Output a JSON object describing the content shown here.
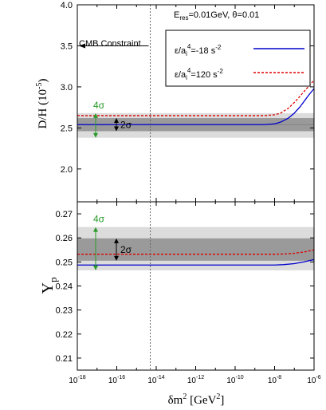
{
  "chart_data": [
    {
      "type": "line",
      "panel": "top",
      "xscale": "log",
      "xlim": [
        1e-18,
        1e-06
      ],
      "ylim": [
        1.6,
        4.0
      ],
      "ylabel_main": "D/H (10",
      "ylabel_exp": "-5",
      "ylabel_close": ")",
      "yticks": [
        {
          "v": 2.0,
          "label": "2.0"
        },
        {
          "v": 2.5,
          "label": "2.5"
        },
        {
          "v": 3.0,
          "label": "3.0"
        },
        {
          "v": 3.5,
          "label": "3.5"
        },
        {
          "v": 4.0,
          "label": "4.0"
        }
      ],
      "header": {
        "prefix": "E",
        "sub": "res",
        "suffix": "=0.01GeV, θ=0.01"
      },
      "cmb_label": "CMB Constraint",
      "cmb_arrow_y": 3.5,
      "vline_x": 5e-15,
      "bands": {
        "outer": [
          2.38,
          2.68
        ],
        "inner": [
          2.46,
          2.62
        ],
        "center": 2.54
      },
      "sigma4": {
        "label": "4σ",
        "range": [
          2.38,
          2.68
        ]
      },
      "sigma2": {
        "label": "2σ",
        "range": [
          2.46,
          2.62
        ]
      },
      "legend": [
        {
          "pre": "ε/a",
          "sub": "i",
          "sup": "4",
          "value": "=-18 s",
          "exp": "-2",
          "color": "#0000cc",
          "dash": "solid"
        },
        {
          "pre": "ε/a",
          "sub": "i",
          "sup": "4",
          "value": "=120 s",
          "exp": "-2",
          "color": "#dd0000",
          "dash": "dashed"
        }
      ],
      "series": [
        {
          "color": "#0000cc",
          "dash": "solid",
          "x": [
            1e-18,
            1e-14,
            1e-10,
            3e-09,
            1e-08,
            2e-08,
            5e-08,
            1e-07,
            2e-07,
            5e-07,
            1e-06
          ],
          "y": [
            2.54,
            2.54,
            2.54,
            2.54,
            2.55,
            2.57,
            2.62,
            2.68,
            2.76,
            2.89,
            2.98
          ]
        },
        {
          "color": "#dd0000",
          "dash": "dashed",
          "x": [
            1e-18,
            1e-14,
            1e-10,
            3e-09,
            1e-08,
            2e-08,
            5e-08,
            1e-07,
            2e-07,
            5e-07,
            1e-06
          ],
          "y": [
            2.65,
            2.65,
            2.65,
            2.65,
            2.66,
            2.68,
            2.74,
            2.81,
            2.89,
            3.0,
            3.08
          ]
        }
      ]
    },
    {
      "type": "line",
      "panel": "bottom",
      "xscale": "log",
      "xlim": [
        1e-18,
        1e-06
      ],
      "ylim": [
        0.205,
        0.275
      ],
      "ylabel_main": "Y",
      "ylabel_sub": "p",
      "yticks": [
        {
          "v": 0.21,
          "label": "0.21"
        },
        {
          "v": 0.22,
          "label": "0.22"
        },
        {
          "v": 0.23,
          "label": "0.23"
        },
        {
          "v": 0.24,
          "label": "0.24"
        },
        {
          "v": 0.25,
          "label": "0.25"
        },
        {
          "v": 0.26,
          "label": "0.26"
        },
        {
          "v": 0.27,
          "label": "0.27"
        }
      ],
      "xticks": [
        {
          "v": 1e-18,
          "base": "10",
          "exp": "-18"
        },
        {
          "v": 1e-16,
          "base": "10",
          "exp": "-16"
        },
        {
          "v": 1e-14,
          "base": "10",
          "exp": "-14"
        },
        {
          "v": 1e-12,
          "base": "10",
          "exp": "-12"
        },
        {
          "v": 1e-10,
          "base": "10",
          "exp": "-10"
        },
        {
          "v": 1e-08,
          "base": "10",
          "exp": "-8"
        },
        {
          "v": 1e-06,
          "base": "10",
          "exp": "-6"
        }
      ],
      "xlabel": {
        "pre": "δm",
        "sup": "2",
        "mid": " [GeV",
        "sup2": "2",
        "post": "]"
      },
      "vline_x": 5e-15,
      "bands": {
        "outer": [
          0.2465,
          0.2645
        ],
        "inner": [
          0.2505,
          0.2598
        ]
      },
      "sigma4": {
        "label": "4σ",
        "range": [
          0.2465,
          0.2645
        ]
      },
      "sigma2": {
        "label": "2σ",
        "range": [
          0.2505,
          0.2598
        ]
      },
      "series": [
        {
          "color": "#0000cc",
          "dash": "solid",
          "x": [
            1e-18,
            1e-14,
            1e-10,
            1e-08,
            3e-08,
            1e-07,
            3e-07,
            1e-06
          ],
          "y": [
            0.2487,
            0.2487,
            0.2487,
            0.2487,
            0.2489,
            0.2493,
            0.25,
            0.251
          ]
        },
        {
          "color": "#dd0000",
          "dash": "dashed",
          "x": [
            1e-18,
            1e-14,
            1e-10,
            1e-08,
            3e-08,
            1e-07,
            3e-07,
            1e-06
          ],
          "y": [
            0.2532,
            0.2532,
            0.2532,
            0.2532,
            0.2533,
            0.2536,
            0.2541,
            0.255
          ]
        }
      ]
    }
  ]
}
